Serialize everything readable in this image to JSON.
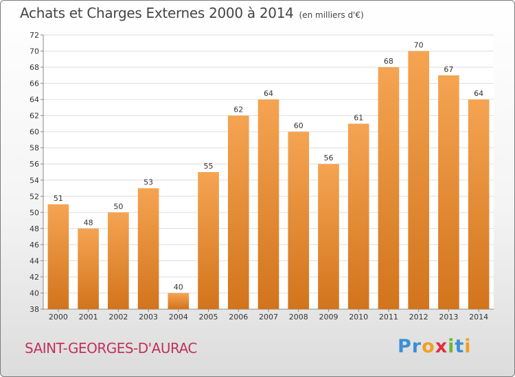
{
  "chart_data": {
    "type": "bar",
    "title": "Achats et Charges Externes 2000 à 2014",
    "subtitle": "(en milliers d'€)",
    "categories": [
      "2000",
      "2001",
      "2002",
      "2003",
      "2004",
      "2005",
      "2006",
      "2007",
      "2008",
      "2009",
      "2010",
      "2011",
      "2012",
      "2013",
      "2014"
    ],
    "values": [
      51,
      48,
      50,
      53,
      40,
      55,
      62,
      64,
      60,
      56,
      61,
      68,
      70,
      67,
      64
    ],
    "ylim": [
      38,
      72
    ],
    "yticks": [
      38,
      40,
      42,
      44,
      46,
      48,
      50,
      52,
      54,
      56,
      58,
      60,
      62,
      64,
      66,
      68,
      70,
      72
    ],
    "grid": true,
    "bar_color_top": "#f5a452",
    "bar_color_bottom": "#d2741c"
  },
  "commune": "SAINT-GEORGES-D'AURAC",
  "commune_color": "#c0325a",
  "logo": {
    "text": "Proxiti",
    "letter_colors": [
      "#3a8fd6",
      "#3a8fd6",
      "#f0a020",
      "#e03040",
      "#6cb83a",
      "#3a8fd6",
      "#f0a020"
    ]
  }
}
